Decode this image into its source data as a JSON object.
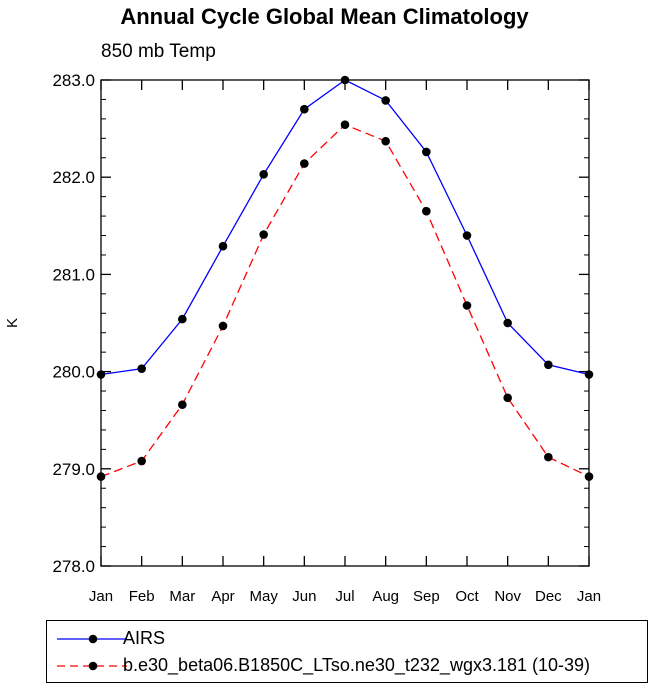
{
  "chart_data": {
    "type": "line",
    "title": "Annual Cycle Global Mean Climatology",
    "subtitle": "850 mb Temp",
    "ylabel": "K",
    "xlabel": "",
    "categories": [
      "Jan",
      "Feb",
      "Mar",
      "Apr",
      "May",
      "Jun",
      "Jul",
      "Aug",
      "Sep",
      "Oct",
      "Nov",
      "Dec",
      "Jan"
    ],
    "ylim": [
      278.0,
      283.0
    ],
    "yticks": [
      "278.0",
      "279.0",
      "280.0",
      "281.0",
      "282.0",
      "283.0"
    ],
    "series": [
      {
        "name": "AIRS",
        "color": "#0000ff",
        "dash": "solid",
        "values": [
          279.97,
          280.03,
          280.54,
          281.29,
          282.03,
          282.7,
          283.0,
          282.79,
          282.26,
          281.4,
          280.5,
          280.07,
          279.97
        ]
      },
      {
        "name": "b.e30_beta06.B1850C_LTso.ne30_t232_wgx3.181 (10-39)",
        "color": "#ff0000",
        "dash": "dashed",
        "values": [
          278.92,
          279.08,
          279.66,
          280.47,
          281.41,
          282.14,
          282.54,
          282.37,
          281.65,
          280.68,
          279.73,
          279.12,
          278.92
        ]
      }
    ],
    "grid": false,
    "legend_position": "bottom"
  }
}
